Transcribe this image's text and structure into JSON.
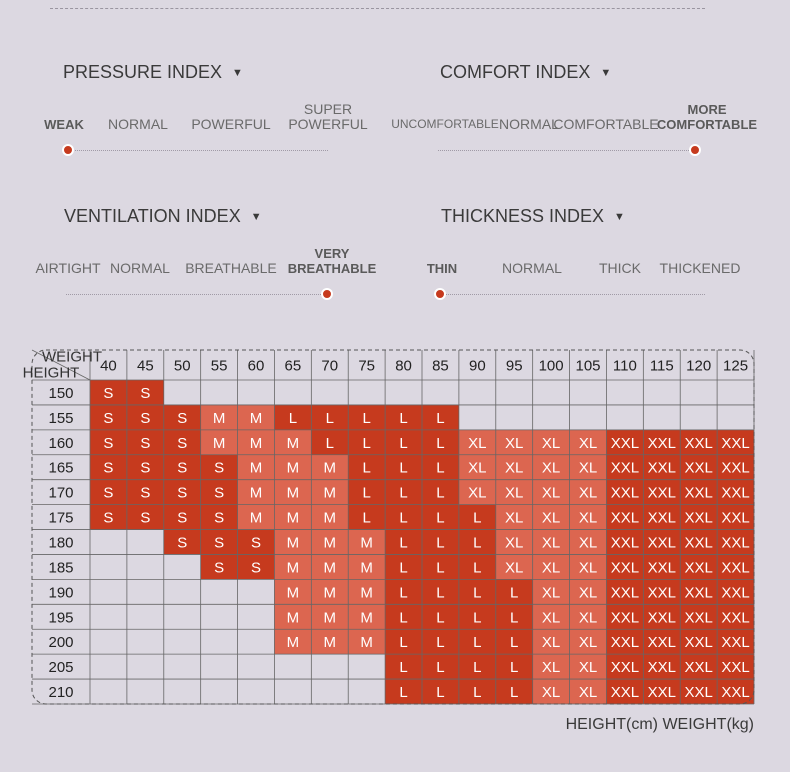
{
  "indexes": [
    {
      "title": "PRESSURE INDEX",
      "options": [
        "WEAK",
        "NORMAL",
        "POWERFUL",
        "SUPER\nPOWERFUL"
      ],
      "selected": 0
    },
    {
      "title": "COMFORT INDEX",
      "options": [
        "UNCOMFORTABLE",
        "NORMAL",
        "COMFORTABLE",
        "MORE\nCOMFORTABLE"
      ],
      "selected": 3
    },
    {
      "title": "VENTILATION INDEX",
      "options": [
        "AIRTIGHT",
        "NORMAL",
        "BREATHABLE",
        "VERY\nBREATHABLE"
      ],
      "selected": 3
    },
    {
      "title": "THICKNESS INDEX",
      "options": [
        "THIN",
        "NORMAL",
        "THICK",
        "THICKENED"
      ],
      "selected": 0
    }
  ],
  "size_table": {
    "corner_top": "WEIGHT",
    "corner_bottom": "HEIGHT",
    "weights": [
      "40",
      "45",
      "50",
      "55",
      "60",
      "65",
      "70",
      "75",
      "80",
      "85",
      "90",
      "95",
      "100",
      "105",
      "110",
      "115",
      "120",
      "125"
    ],
    "rows": [
      {
        "height": "150",
        "sizes": [
          "S",
          "S",
          null,
          null,
          null,
          null,
          null,
          null,
          null,
          null,
          null,
          null,
          null,
          null,
          null,
          null,
          null,
          null
        ]
      },
      {
        "height": "155",
        "sizes": [
          "S",
          "S",
          "S",
          "M",
          "M",
          "L",
          "L",
          "L",
          "L",
          "L",
          null,
          null,
          null,
          null,
          null,
          null,
          null,
          null
        ]
      },
      {
        "height": "160",
        "sizes": [
          "S",
          "S",
          "S",
          "M",
          "M",
          "M",
          "L",
          "L",
          "L",
          "L",
          "XL",
          "XL",
          "XL",
          "XL",
          "XXL",
          "XXL",
          "XXL",
          "XXL"
        ]
      },
      {
        "height": "165",
        "sizes": [
          "S",
          "S",
          "S",
          "S",
          "M",
          "M",
          "M",
          "L",
          "L",
          "L",
          "XL",
          "XL",
          "XL",
          "XL",
          "XXL",
          "XXL",
          "XXL",
          "XXL"
        ]
      },
      {
        "height": "170",
        "sizes": [
          "S",
          "S",
          "S",
          "S",
          "M",
          "M",
          "M",
          "L",
          "L",
          "L",
          "XL",
          "XL",
          "XL",
          "XL",
          "XXL",
          "XXL",
          "XXL",
          "XXL"
        ]
      },
      {
        "height": "175",
        "sizes": [
          "S",
          "S",
          "S",
          "S",
          "M",
          "M",
          "M",
          "L",
          "L",
          "L",
          "L",
          "XL",
          "XL",
          "XL",
          "XXL",
          "XXL",
          "XXL",
          "XXL"
        ]
      },
      {
        "height": "180",
        "sizes": [
          null,
          null,
          "S",
          "S",
          "S",
          "M",
          "M",
          "M",
          "L",
          "L",
          "L",
          "XL",
          "XL",
          "XL",
          "XXL",
          "XXL",
          "XXL",
          "XXL"
        ]
      },
      {
        "height": "185",
        "sizes": [
          null,
          null,
          null,
          "S",
          "S",
          "M",
          "M",
          "M",
          "L",
          "L",
          "L",
          "XL",
          "XL",
          "XL",
          "XXL",
          "XXL",
          "XXL",
          "XXL"
        ]
      },
      {
        "height": "190",
        "sizes": [
          null,
          null,
          null,
          null,
          null,
          "M",
          "M",
          "M",
          "L",
          "L",
          "L",
          "L",
          "XL",
          "XL",
          "XXL",
          "XXL",
          "XXL",
          "XXL"
        ]
      },
      {
        "height": "195",
        "sizes": [
          null,
          null,
          null,
          null,
          null,
          "M",
          "M",
          "M",
          "L",
          "L",
          "L",
          "L",
          "XL",
          "XL",
          "XXL",
          "XXL",
          "XXL",
          "XXL"
        ]
      },
      {
        "height": "200",
        "sizes": [
          null,
          null,
          null,
          null,
          null,
          "M",
          "M",
          "M",
          "L",
          "L",
          "L",
          "L",
          "XL",
          "XL",
          "XXL",
          "XXL",
          "XXL",
          "XXL"
        ]
      },
      {
        "height": "205",
        "sizes": [
          null,
          null,
          null,
          null,
          null,
          null,
          null,
          null,
          "L",
          "L",
          "L",
          "L",
          "XL",
          "XL",
          "XXL",
          "XXL",
          "XXL",
          "XXL"
        ]
      },
      {
        "height": "210",
        "sizes": [
          null,
          null,
          null,
          null,
          null,
          null,
          null,
          null,
          "L",
          "L",
          "L",
          "L",
          "XL",
          "XL",
          "XXL",
          "XXL",
          "XXL",
          "XXL"
        ]
      }
    ],
    "size_colors": {
      "S": "#c63a1e",
      "M": "#dc6650",
      "L": "#c63a1e",
      "XL": "#dc6650",
      "XXL": "#c63a1e"
    },
    "footer": "HEIGHT(cm) WEIGHT(kg)"
  }
}
